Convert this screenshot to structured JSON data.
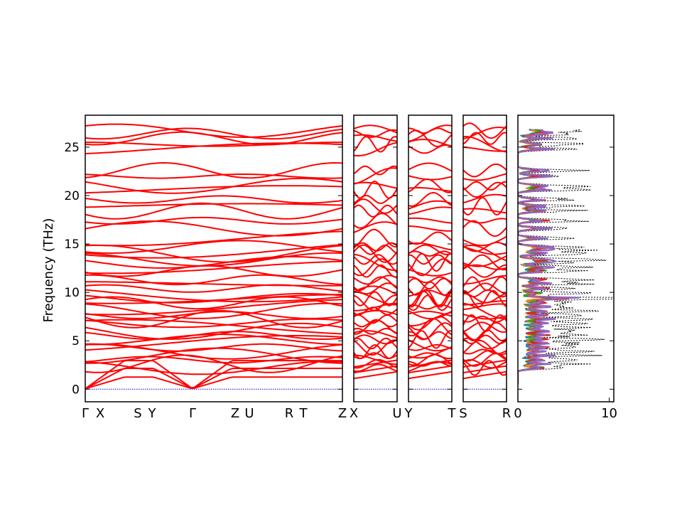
{
  "chart_data": {
    "type": "line",
    "title": "",
    "ylabel": "Frequency (THz)",
    "ylim": [
      -1.3,
      28.3
    ],
    "yticks": [
      0,
      5,
      10,
      15,
      20,
      25
    ],
    "band_color": "#ff0000",
    "zero_line_color": "#0000cc",
    "band_segments": [
      {
        "labels": [
          "Γ",
          "X",
          "S",
          "Y",
          "Γ",
          "Z",
          "U",
          "R",
          "T",
          "Z"
        ]
      },
      {
        "labels": [
          "X",
          "U"
        ]
      },
      {
        "labels": [
          "Y",
          "T"
        ]
      },
      {
        "labels": [
          "S",
          "R"
        ]
      }
    ],
    "dos": {
      "xlabel": "",
      "xlim": [
        0,
        10.5
      ],
      "xticks": [
        0,
        10
      ],
      "colors": [
        "#1f77b4",
        "#ff7f0e",
        "#2ca02c",
        "#d62728",
        "#9467bd"
      ],
      "total_color": "#000000"
    }
  }
}
